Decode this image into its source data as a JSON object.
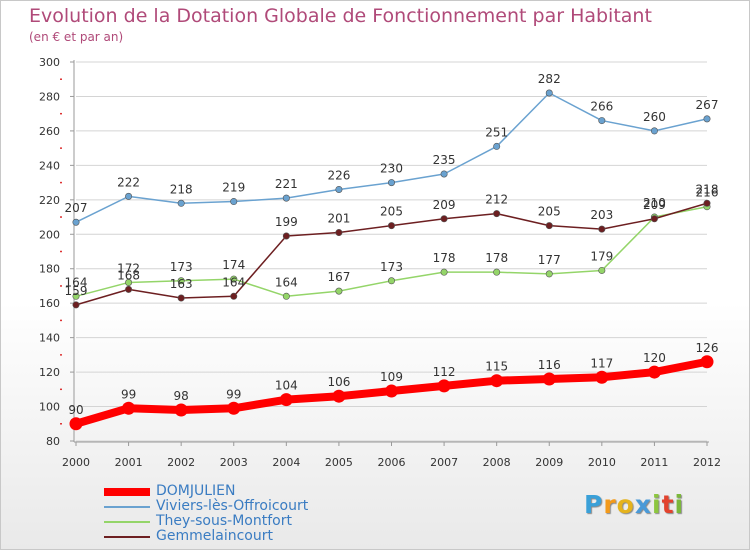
{
  "title": "Evolution de la Dotation Globale de Fonctionnement par Habitant",
  "subtitle": "(en € et par an)",
  "logo": {
    "letters": [
      "P",
      "r",
      "o",
      "x",
      "i",
      "t",
      "i"
    ],
    "colors": [
      "#3aa0d8",
      "#f39a1b",
      "#e5b31d",
      "#4a9ad8",
      "#8dc63f",
      "#e2432e",
      "#7bb83a"
    ]
  },
  "chart_data": {
    "type": "line",
    "title": "Evolution de la Dotation Globale de Fonctionnement par Habitant",
    "subtitle": "(en € et par an)",
    "x": [
      "2000",
      "2001",
      "2002",
      "2003",
      "2004",
      "2005",
      "2006",
      "2007",
      "2008",
      "2009",
      "2010",
      "2011",
      "2012"
    ],
    "ylim": [
      80,
      300
    ],
    "yticks": [
      "80",
      "100",
      "120",
      "140",
      "160",
      "180",
      "200",
      "220",
      "240",
      "260",
      "280",
      "300"
    ],
    "grid": "horizontal",
    "legend": "bottom-left",
    "series": [
      {
        "name": "DOMJULIEN",
        "color": "#ff0000",
        "values": [
          90,
          99,
          98,
          99,
          104,
          106,
          109,
          112,
          115,
          116,
          117,
          120,
          126
        ],
        "labels": [
          "90",
          "99",
          "98",
          "99",
          "104",
          "106",
          "109",
          "112",
          "115",
          "116",
          "117",
          "120",
          "126"
        ]
      },
      {
        "name": "Viviers-lès-Offroicourt",
        "color": "#6aa2d0",
        "values": [
          207,
          222,
          218,
          219,
          221,
          226,
          230,
          235,
          251,
          282,
          266,
          260,
          267
        ],
        "labels": [
          "207",
          "222",
          "218",
          "219",
          "221",
          "226",
          "230",
          "235",
          "251",
          "282",
          "266",
          "260",
          "267"
        ]
      },
      {
        "name": "They-sous-Montfort",
        "color": "#94d569",
        "values": [
          164,
          172,
          173,
          174,
          164,
          167,
          173,
          178,
          178,
          177,
          179,
          210,
          216
        ],
        "labels": [
          "164",
          "172",
          "173",
          "174",
          "164",
          "167",
          "173",
          "178",
          "178",
          "177",
          "179",
          "210",
          "216"
        ]
      },
      {
        "name": "Gemmelaincourt",
        "color": "#6d1f21",
        "values": [
          159,
          168,
          163,
          164,
          199,
          201,
          205,
          209,
          212,
          205,
          203,
          209,
          218
        ],
        "labels": [
          "159",
          "168",
          "163",
          "164",
          "199",
          "201",
          "205",
          "209",
          "212",
          "205",
          "203",
          "209",
          "218"
        ]
      }
    ]
  }
}
